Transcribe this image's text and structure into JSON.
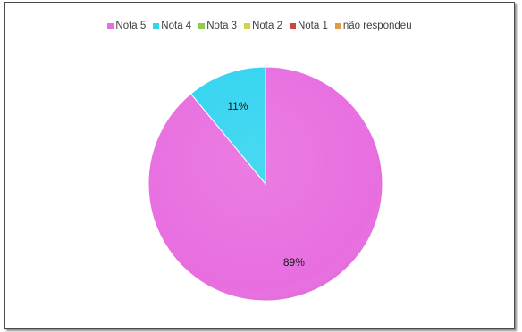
{
  "chart_data": {
    "type": "pie",
    "legend_position": "top",
    "series": [
      {
        "name": "Nota 5",
        "value": 89,
        "label": "89%",
        "color": "#e86ee0"
      },
      {
        "name": "Nota 4",
        "value": 11,
        "label": "11%",
        "color": "#33d4f0"
      },
      {
        "name": "Nota 3",
        "value": 0,
        "label": "",
        "color": "#8fce4c"
      },
      {
        "name": "Nota 2",
        "value": 0,
        "label": "",
        "color": "#d4d24a"
      },
      {
        "name": "Nota 1",
        "value": 0,
        "label": "",
        "color": "#d04343"
      },
      {
        "name": "não respondeu",
        "value": 0,
        "label": "",
        "color": "#e59a3b"
      }
    ]
  }
}
